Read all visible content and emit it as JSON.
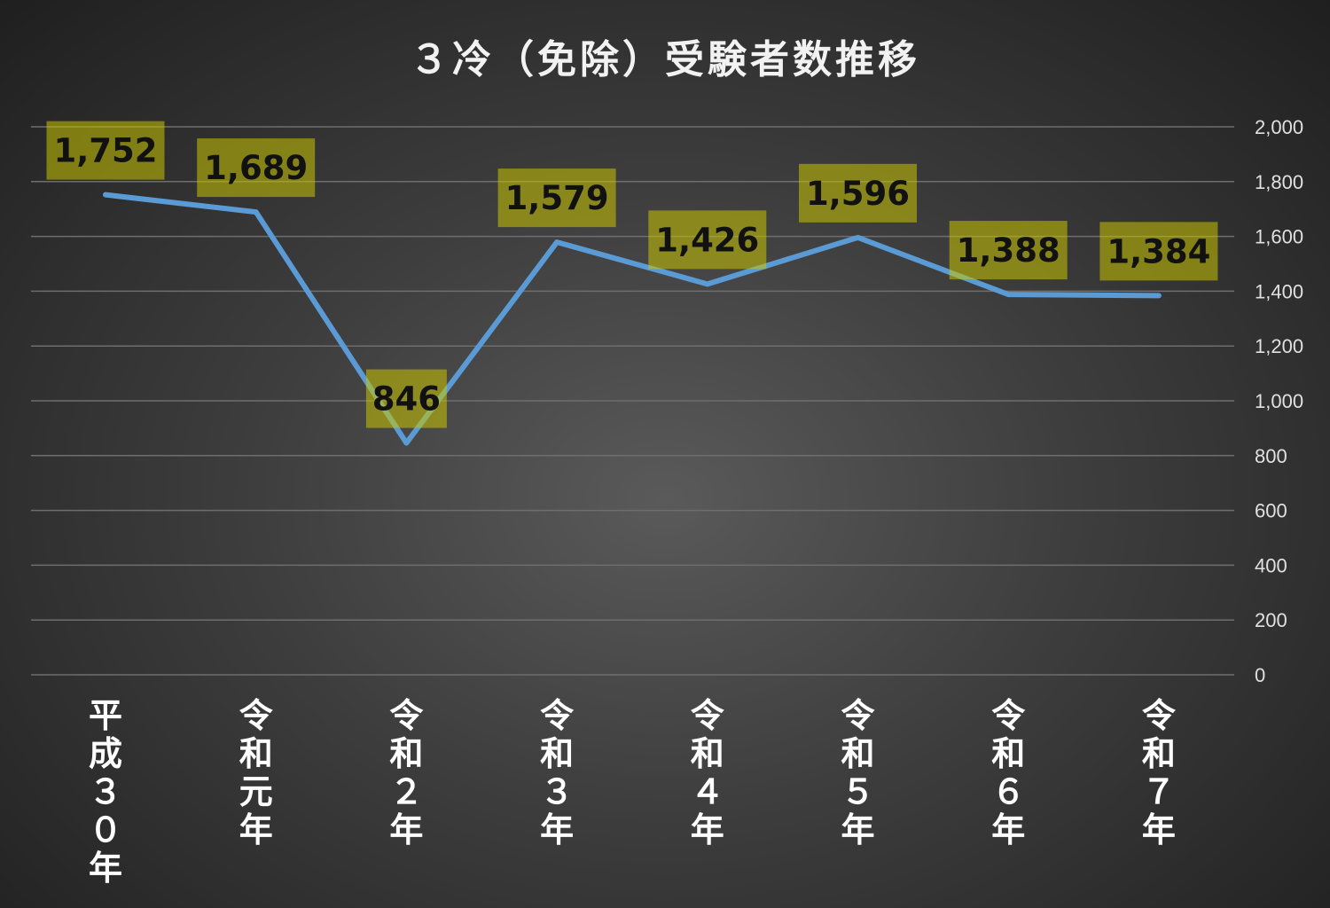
{
  "chart_data": {
    "type": "line",
    "title": "３冷（免除）受験者数推移",
    "categories": [
      "平成３０年",
      "令和元年",
      "令和２年",
      "令和３年",
      "令和４年",
      "令和５年",
      "令和６年",
      "令和７年"
    ],
    "series": [
      {
        "values": [
          1752,
          1689,
          846,
          1579,
          1426,
          1596,
          1388,
          1384
        ],
        "data_labels": [
          "1,752",
          "1,689",
          "846",
          "1,579",
          "1,426",
          "1,596",
          "1,388",
          "1,384"
        ]
      }
    ],
    "ylim": [
      0,
      2000
    ],
    "yticks": [
      "0",
      "200",
      "400",
      "600",
      "800",
      "1,000",
      "1,200",
      "1,400",
      "1,600",
      "1,800",
      "2,000"
    ],
    "y_axis_position": "right",
    "grid": true,
    "legend": "none",
    "colors": {
      "line": "#5b9bd5",
      "label_background": "#c9c400",
      "label_text": "#111111",
      "axis_text": "#e0e0e0"
    }
  }
}
